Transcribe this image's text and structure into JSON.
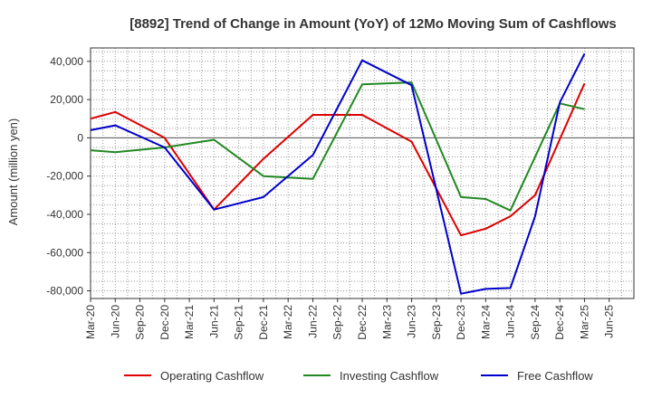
{
  "chart_data": {
    "type": "line",
    "title": "[8892]  Trend of Change in Amount (YoY) of 12Mo Moving Sum of Cashflows",
    "xlabel": "",
    "ylabel": "Amount (million yen)",
    "ylim": [
      -84000,
      47000
    ],
    "y_ticks": [
      40000,
      20000,
      0,
      -20000,
      -40000,
      -60000,
      -80000
    ],
    "y_tick_labels": [
      "40,000",
      "20,000",
      "0",
      "-20,000",
      "-40,000",
      "-60,000",
      "-80,000"
    ],
    "categories": [
      "Mar-20",
      "Jun-20",
      "Sep-20",
      "Dec-20",
      "Mar-21",
      "Jun-21",
      "Sep-21",
      "Dec-21",
      "Mar-22",
      "Jun-22",
      "Sep-22",
      "Dec-22",
      "Mar-23",
      "Jun-23",
      "Sep-23",
      "Dec-23",
      "Mar-24",
      "Jun-24",
      "Sep-24",
      "Dec-24",
      "Mar-25",
      "Jun-25"
    ],
    "grid": true,
    "legend_position": "bottom",
    "series": [
      {
        "name": "Operating Cashflow",
        "color": "#dd0000",
        "values": [
          10000,
          13500,
          null,
          0,
          null,
          -37500,
          null,
          -11000,
          null,
          12000,
          null,
          12000,
          null,
          -2000,
          null,
          -51000,
          -47500,
          -41000,
          -30000,
          null,
          28500,
          null
        ]
      },
      {
        "name": "Investing Cashflow",
        "color": "#228822",
        "values": [
          -6500,
          -7500,
          null,
          -5000,
          null,
          -1000,
          null,
          -20000,
          null,
          -21500,
          null,
          28000,
          null,
          29000,
          null,
          -31000,
          -32000,
          -38000,
          null,
          18000,
          15000,
          null
        ]
      },
      {
        "name": "Free Cashflow",
        "color": "#0000cc",
        "values": [
          4000,
          6500,
          null,
          -5000,
          null,
          -37500,
          null,
          -31000,
          null,
          -9000,
          null,
          40500,
          null,
          27500,
          null,
          -81500,
          -79000,
          -78500,
          -41000,
          18500,
          44000,
          null
        ]
      }
    ]
  }
}
